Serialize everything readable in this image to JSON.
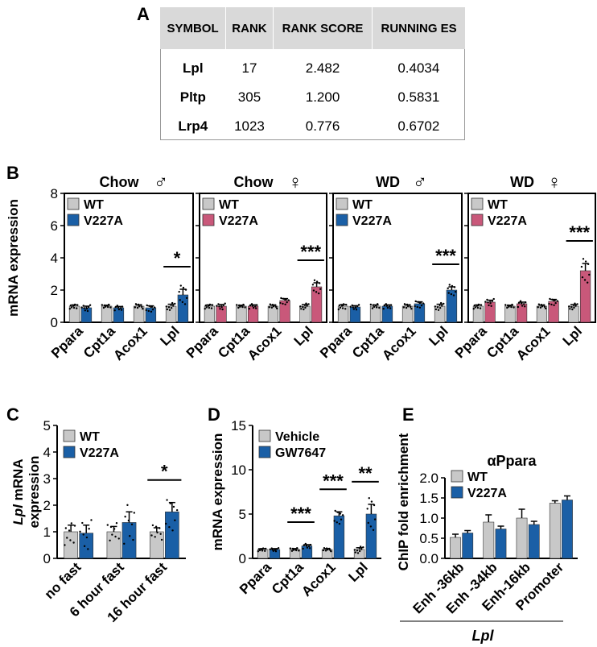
{
  "colors": {
    "wt": "#c8c8c8",
    "blue": "#1a5fa6",
    "pink": "#c9587a",
    "axis": "#000000"
  },
  "panel_labels": {
    "a": "A",
    "b": "B",
    "c": "C",
    "d": "D",
    "e": "E"
  },
  "table": {
    "headers": [
      "SYMBOL",
      "RANK",
      "RANK SCORE",
      "RUNNING ES"
    ],
    "rows": [
      [
        "Lpl",
        "17",
        "2.482",
        "0.4034"
      ],
      [
        "Pltp",
        "305",
        "1.200",
        "0.5831"
      ],
      [
        "Lrp4",
        "1023",
        "0.776",
        "0.6702"
      ]
    ]
  },
  "chart_data": [
    {
      "id": "b1",
      "type": "bar",
      "title": "Chow",
      "sex_symbol": "♂",
      "ylabel": "mRNA expression",
      "ylim": [
        0,
        8
      ],
      "yticks": [
        0,
        2,
        4,
        6,
        8
      ],
      "categories": [
        "Ppara",
        "Cpt1a",
        "Acox1",
        "Lpl"
      ],
      "series": [
        {
          "name": "WT",
          "color": "wt",
          "values": [
            1.0,
            1.0,
            1.0,
            1.0
          ],
          "errors": [
            0.08,
            0.06,
            0.08,
            0.12
          ]
        },
        {
          "name": "V227A",
          "color": "blue",
          "values": [
            0.9,
            0.9,
            0.9,
            1.7
          ],
          "errors": [
            0.1,
            0.08,
            0.12,
            0.35
          ]
        }
      ],
      "significance": [
        {
          "category": "Lpl",
          "label": "*"
        }
      ]
    },
    {
      "id": "b2",
      "type": "bar",
      "title": "Chow",
      "sex_symbol": "♀",
      "ylim": [
        0,
        8
      ],
      "yticks": [
        0,
        2,
        4,
        6,
        8
      ],
      "categories": [
        "Ppara",
        "Cpt1a",
        "Acox1",
        "Lpl"
      ],
      "series": [
        {
          "name": "WT",
          "color": "wt",
          "values": [
            1.0,
            1.0,
            1.0,
            1.0
          ],
          "errors": [
            0.08,
            0.06,
            0.07,
            0.1
          ]
        },
        {
          "name": "V227A",
          "color": "pink",
          "values": [
            1.0,
            1.0,
            1.35,
            2.2
          ],
          "errors": [
            0.1,
            0.08,
            0.12,
            0.25
          ]
        }
      ],
      "significance": [
        {
          "category": "Lpl",
          "label": "***"
        }
      ]
    },
    {
      "id": "b3",
      "type": "bar",
      "title": "WD",
      "sex_symbol": "♂",
      "ylim": [
        0,
        8
      ],
      "yticks": [
        0,
        2,
        4,
        6,
        8
      ],
      "categories": [
        "Ppara",
        "Cpt1a",
        "Acox1",
        "Lpl"
      ],
      "series": [
        {
          "name": "WT",
          "color": "wt",
          "values": [
            1.0,
            1.0,
            1.0,
            1.0
          ],
          "errors": [
            0.1,
            0.08,
            0.08,
            0.12
          ]
        },
        {
          "name": "V227A",
          "color": "blue",
          "values": [
            0.95,
            1.0,
            1.15,
            2.0
          ],
          "errors": [
            0.08,
            0.08,
            0.12,
            0.2
          ]
        }
      ],
      "significance": [
        {
          "category": "Lpl",
          "label": "***"
        }
      ]
    },
    {
      "id": "b4",
      "type": "bar",
      "title": "WD",
      "sex_symbol": "♀",
      "ylim": [
        0,
        8
      ],
      "yticks": [
        0,
        2,
        4,
        6,
        8
      ],
      "categories": [
        "Ppara",
        "Cpt1a",
        "Acox1",
        "Lpl"
      ],
      "series": [
        {
          "name": "WT",
          "color": "wt",
          "values": [
            1.0,
            1.0,
            1.0,
            1.0
          ],
          "errors": [
            0.08,
            0.06,
            0.07,
            0.1
          ]
        },
        {
          "name": "V227A",
          "color": "pink",
          "values": [
            1.25,
            1.15,
            1.3,
            3.2
          ],
          "errors": [
            0.12,
            0.1,
            0.12,
            0.45
          ]
        }
      ],
      "significance": [
        {
          "category": "Lpl",
          "label": "***"
        }
      ]
    },
    {
      "id": "c",
      "type": "bar",
      "title": "",
      "ylabel_italic": "Lpl",
      "ylabel_rest": " mRNA",
      "ylabel_line2": "expression",
      "ylim": [
        0,
        5
      ],
      "yticks": [
        0,
        1,
        2,
        3,
        4,
        5
      ],
      "categories": [
        "no fast",
        "6 hour fast",
        "16 hour fast"
      ],
      "series": [
        {
          "name": "WT",
          "color": "wt",
          "values": [
            1.0,
            1.0,
            1.0
          ],
          "errors": [
            0.25,
            0.2,
            0.15
          ]
        },
        {
          "name": "V227A",
          "color": "blue",
          "values": [
            0.95,
            1.35,
            1.75
          ],
          "errors": [
            0.3,
            0.4,
            0.35
          ]
        }
      ],
      "significance": [
        {
          "category": "16 hour fast",
          "label": "*"
        }
      ]
    },
    {
      "id": "d",
      "type": "bar",
      "title": "",
      "ylabel": "mRNA expression",
      "ylim": [
        0,
        15
      ],
      "yticks": [
        0,
        5,
        10,
        15
      ],
      "categories": [
        "Ppara",
        "Cpt1a",
        "Acox1",
        "Lpl"
      ],
      "series": [
        {
          "name": "Vehicle",
          "color": "wt",
          "values": [
            1.0,
            1.0,
            1.0,
            1.0
          ],
          "errors": [
            0.1,
            0.1,
            0.1,
            0.2
          ]
        },
        {
          "name": "GW7647",
          "color": "blue",
          "values": [
            1.0,
            1.4,
            4.8,
            5.0
          ],
          "errors": [
            0.1,
            0.15,
            0.45,
            1.1
          ]
        }
      ],
      "significance": [
        {
          "category": "Cpt1a",
          "label": "***"
        },
        {
          "category": "Acox1",
          "label": "***"
        },
        {
          "category": "Lpl",
          "label": "**"
        }
      ]
    },
    {
      "id": "e",
      "type": "bar",
      "title": "αPpara",
      "ylabel": "ChIP fold enrichment",
      "group_label": "Lpl",
      "ylim": [
        0,
        2.0
      ],
      "yticks": [
        0.0,
        0.5,
        1.0,
        1.5,
        2.0
      ],
      "categories": [
        "Enh -36kb",
        "Enh -34kb",
        "Enh-16kb",
        "Promoter"
      ],
      "series": [
        {
          "name": "WT",
          "color": "wt",
          "values": [
            0.52,
            0.9,
            1.0,
            1.37
          ],
          "errors": [
            0.08,
            0.18,
            0.22,
            0.06
          ]
        },
        {
          "name": "V227A",
          "color": "blue",
          "values": [
            0.63,
            0.73,
            0.84,
            1.45
          ],
          "errors": [
            0.06,
            0.07,
            0.08,
            0.1
          ]
        }
      ],
      "significance": []
    }
  ]
}
